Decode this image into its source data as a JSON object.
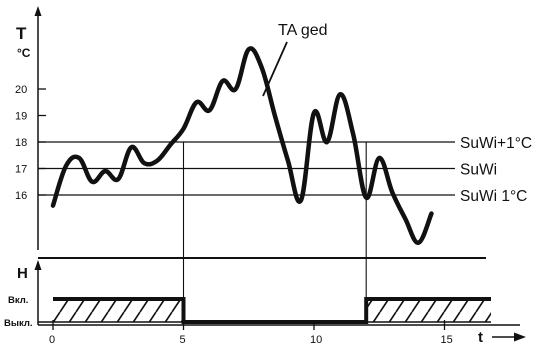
{
  "chart_data": [
    {
      "type": "line",
      "title": "",
      "ylabel": "T",
      "yunit": "°C",
      "yticks": [
        16,
        17,
        18,
        19,
        20
      ],
      "ylim": [
        13.5,
        23
      ],
      "xlim": [
        0,
        17
      ],
      "series": [
        {
          "name": "TA ged",
          "x": [
            0,
            0.5,
            1,
            1.5,
            2,
            2.5,
            3,
            3.5,
            4,
            4.5,
            5,
            5.5,
            6,
            6.5,
            7,
            7.5,
            8,
            8.5,
            9,
            9.5,
            10,
            10.5,
            11,
            11.5,
            12,
            12.5,
            13,
            13.5,
            14,
            14.5
          ],
          "y": [
            15.6,
            17.1,
            17.4,
            16.5,
            16.9,
            16.6,
            17.8,
            17.2,
            17.3,
            17.9,
            18.5,
            19.5,
            19.2,
            20.3,
            20.0,
            21.5,
            20.8,
            19.0,
            17.3,
            15.8,
            19.1,
            18.0,
            19.8,
            18.3,
            15.9,
            17.4,
            16.1,
            15.1,
            14.2,
            15.3
          ]
        }
      ],
      "reference_lines": [
        {
          "label": "SuWi+1°C",
          "value": 18
        },
        {
          "label": "SuWi",
          "value": 17
        },
        {
          "label": "SuWi  1°C",
          "value": 16
        }
      ],
      "annotation": "TA ged"
    },
    {
      "type": "line",
      "ylabel": "H",
      "states": [
        "Вкл.",
        "Выкл."
      ],
      "xlabel": "t",
      "xticks": [
        "0",
        "5",
        "10",
        "15"
      ],
      "segments": [
        {
          "from": 0,
          "to": 5,
          "state": "Вкл."
        },
        {
          "from": 5,
          "to": 12,
          "state": "Выкл."
        },
        {
          "from": 12,
          "to": 17,
          "state": "Вкл."
        }
      ]
    }
  ]
}
